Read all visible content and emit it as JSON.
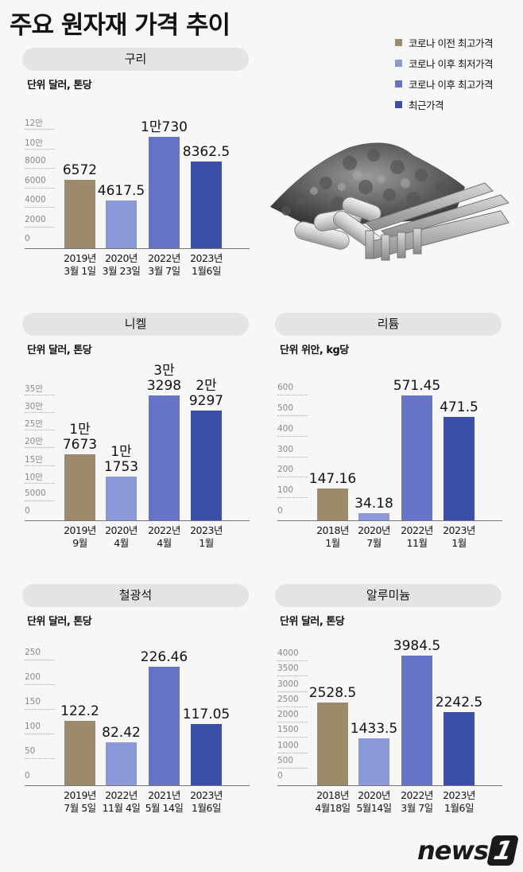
{
  "title": "주요 원자재 가격 추이",
  "legend": [
    {
      "label": "코로나 이전 최고가격",
      "color": "#9c8a6b"
    },
    {
      "label": "코로나 이후 최저가격",
      "color": "#8c99d9"
    },
    {
      "label": "코로나 이후 최고가격",
      "color": "#6674c8"
    },
    {
      "label": "최근가격",
      "color": "#3b4ea8"
    }
  ],
  "logo": {
    "text": "news",
    "mark": "1"
  },
  "chart_data": [
    {
      "type": "bar",
      "title": "구리",
      "unit": "단위 달러, 톤당",
      "yticks": [
        "12만",
        "10만",
        "8000",
        "6000",
        "4000",
        "2000",
        "0"
      ],
      "ylim": [
        0,
        12000
      ],
      "categories": [
        "2019년 3월 1일",
        "2020년 3월 23일",
        "2022년 3월 7일",
        "2023년 1월6일"
      ],
      "cat_lines": [
        [
          "2019년",
          "3월 1일"
        ],
        [
          "2020년",
          "3월 23일"
        ],
        [
          "2022년",
          "3월 7일"
        ],
        [
          "2023년",
          "1월6일"
        ]
      ],
      "values": [
        6572,
        4617.5,
        10730,
        8362.5
      ],
      "labels": [
        [
          "6572"
        ],
        [
          "4617.5"
        ],
        [
          "1만730"
        ],
        [
          "8362.5"
        ]
      ]
    },
    {
      "type": "bar",
      "title": "니켈",
      "unit": "단위 달러, 톤당",
      "yticks": [
        "35만",
        "30만",
        "25만",
        "20만",
        "15만",
        "10만",
        "5000",
        "0"
      ],
      "ylim": [
        0,
        35000
      ],
      "categories": [
        "2019년 9월",
        "2020년 4월",
        "2022년 4월",
        "2023년 1월"
      ],
      "cat_lines": [
        [
          "2019년",
          "9월"
        ],
        [
          "2020년",
          "4월"
        ],
        [
          "2022년",
          "4월"
        ],
        [
          "2023년",
          "1월"
        ]
      ],
      "values": [
        17673,
        11753,
        33298,
        29297
      ],
      "labels": [
        [
          "1만",
          "7673"
        ],
        [
          "1만",
          "1753"
        ],
        [
          "3만",
          "3298"
        ],
        [
          "2만",
          "9297"
        ]
      ]
    },
    {
      "type": "bar",
      "title": "리튬",
      "unit": "단위 위안, kg당",
      "yticks": [
        "600",
        "500",
        "400",
        "300",
        "200",
        "100",
        "0"
      ],
      "ylim": [
        0,
        600
      ],
      "categories": [
        "2018년 1월",
        "2020년 7월",
        "2022년 11월",
        "2023년 1월"
      ],
      "cat_lines": [
        [
          "2018년",
          "1월"
        ],
        [
          "2020년",
          "7월"
        ],
        [
          "2022년",
          "11월"
        ],
        [
          "2023년",
          "1월"
        ]
      ],
      "values": [
        147.16,
        34.18,
        571.45,
        471.5
      ],
      "labels": [
        [
          "147.16"
        ],
        [
          "34.18"
        ],
        [
          "571.45"
        ],
        [
          "471.5"
        ]
      ]
    },
    {
      "type": "bar",
      "title": "철광석",
      "unit": "단위 달러, 톤당",
      "yticks": [
        "250",
        "200",
        "150",
        "100",
        "50",
        "0"
      ],
      "ylim": [
        0,
        250
      ],
      "categories": [
        "2019년 7월 5일",
        "2022년 11월 4일",
        "2021년 5월 14일",
        "2023년 1월6일"
      ],
      "cat_lines": [
        [
          "2019년",
          "7월 5일"
        ],
        [
          "2022년",
          "11월 4일"
        ],
        [
          "2021년",
          "5월 14일"
        ],
        [
          "2023년",
          "1월6일"
        ]
      ],
      "values": [
        122.2,
        82.42,
        226.46,
        117.05
      ],
      "labels": [
        [
          "122.2"
        ],
        [
          "82.42"
        ],
        [
          "226.46"
        ],
        [
          "117.05"
        ]
      ]
    },
    {
      "type": "bar",
      "title": "알루미늄",
      "unit": "단위 달러, 톤당",
      "yticks": [
        "4000",
        "3500",
        "3000",
        "2500",
        "2000",
        "1500",
        "1000",
        "500",
        "0"
      ],
      "ylim": [
        0,
        4000
      ],
      "categories": [
        "2018년 4월18일",
        "2020년 5월14일",
        "2022년 3월 7일",
        "2023년 1월6일"
      ],
      "cat_lines": [
        [
          "2018년",
          "4월18일"
        ],
        [
          "2020년",
          "5월14일"
        ],
        [
          "2022년",
          "3월 7일"
        ],
        [
          "2023년",
          "1월6일"
        ]
      ],
      "values": [
        2528.5,
        1433.5,
        3984.5,
        2242.5
      ],
      "labels": [
        [
          "2528.5"
        ],
        [
          "1433.5"
        ],
        [
          "3984.5"
        ],
        [
          "2242.5"
        ]
      ]
    }
  ]
}
